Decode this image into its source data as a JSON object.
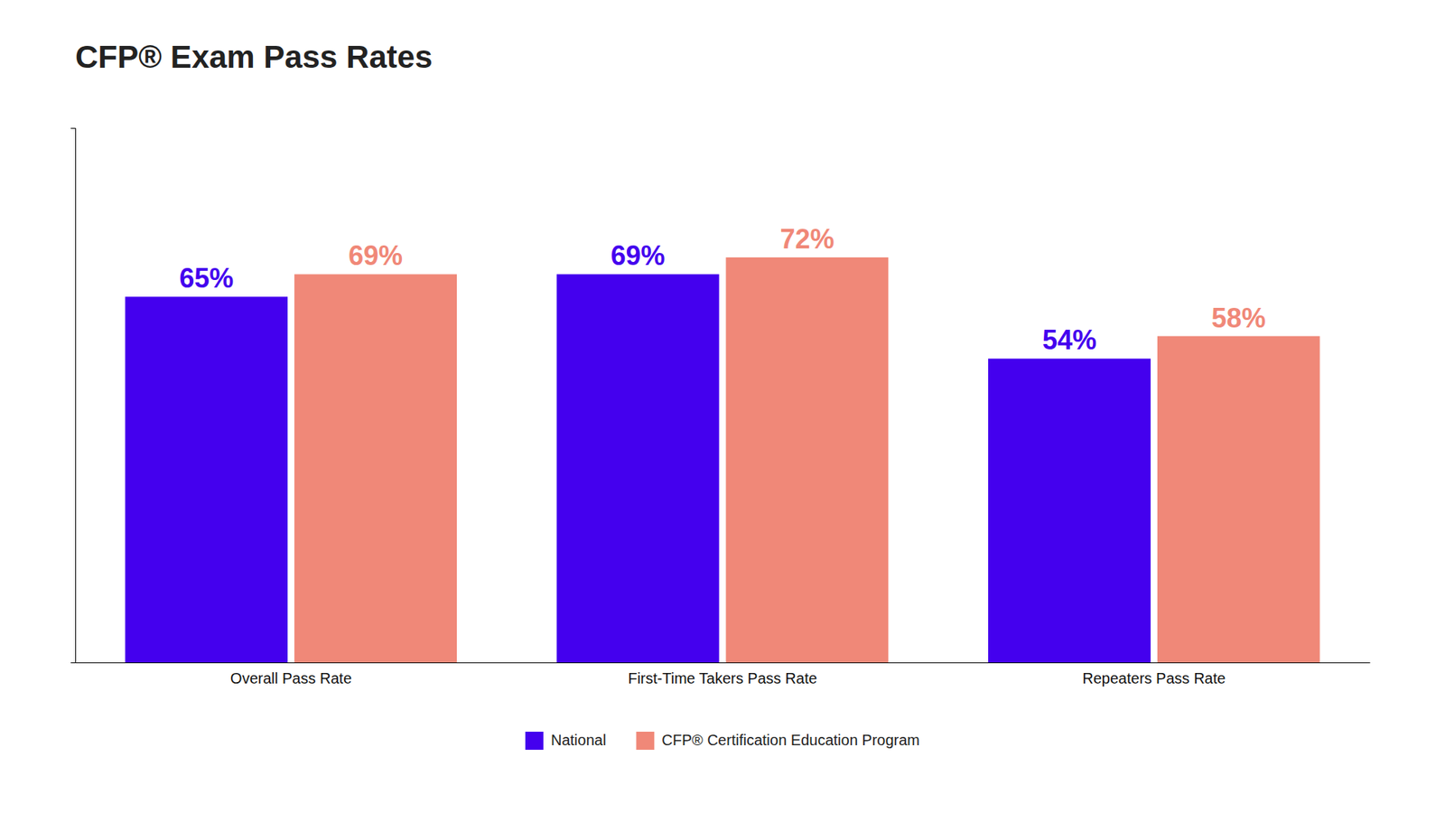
{
  "chart_data": {
    "type": "bar",
    "title": "CFP® Exam Pass Rates",
    "categories": [
      "Overall Pass Rate",
      "First-Time Takers Pass Rate",
      "Repeaters Pass Rate"
    ],
    "series": [
      {
        "name": "National",
        "color": "#4400ee",
        "values": [
          65,
          69,
          54
        ],
        "value_labels": [
          "65%",
          "69%",
          "54%"
        ]
      },
      {
        "name": "CFP® Certification Education Program",
        "color": "#f08878",
        "values": [
          69,
          72,
          58
        ],
        "value_labels": [
          "69%",
          "72%",
          "58%"
        ]
      }
    ],
    "ylim": [
      0,
      95
    ],
    "grid": false,
    "legend": "bottom",
    "data_labels": true,
    "tick_labels": "x"
  }
}
